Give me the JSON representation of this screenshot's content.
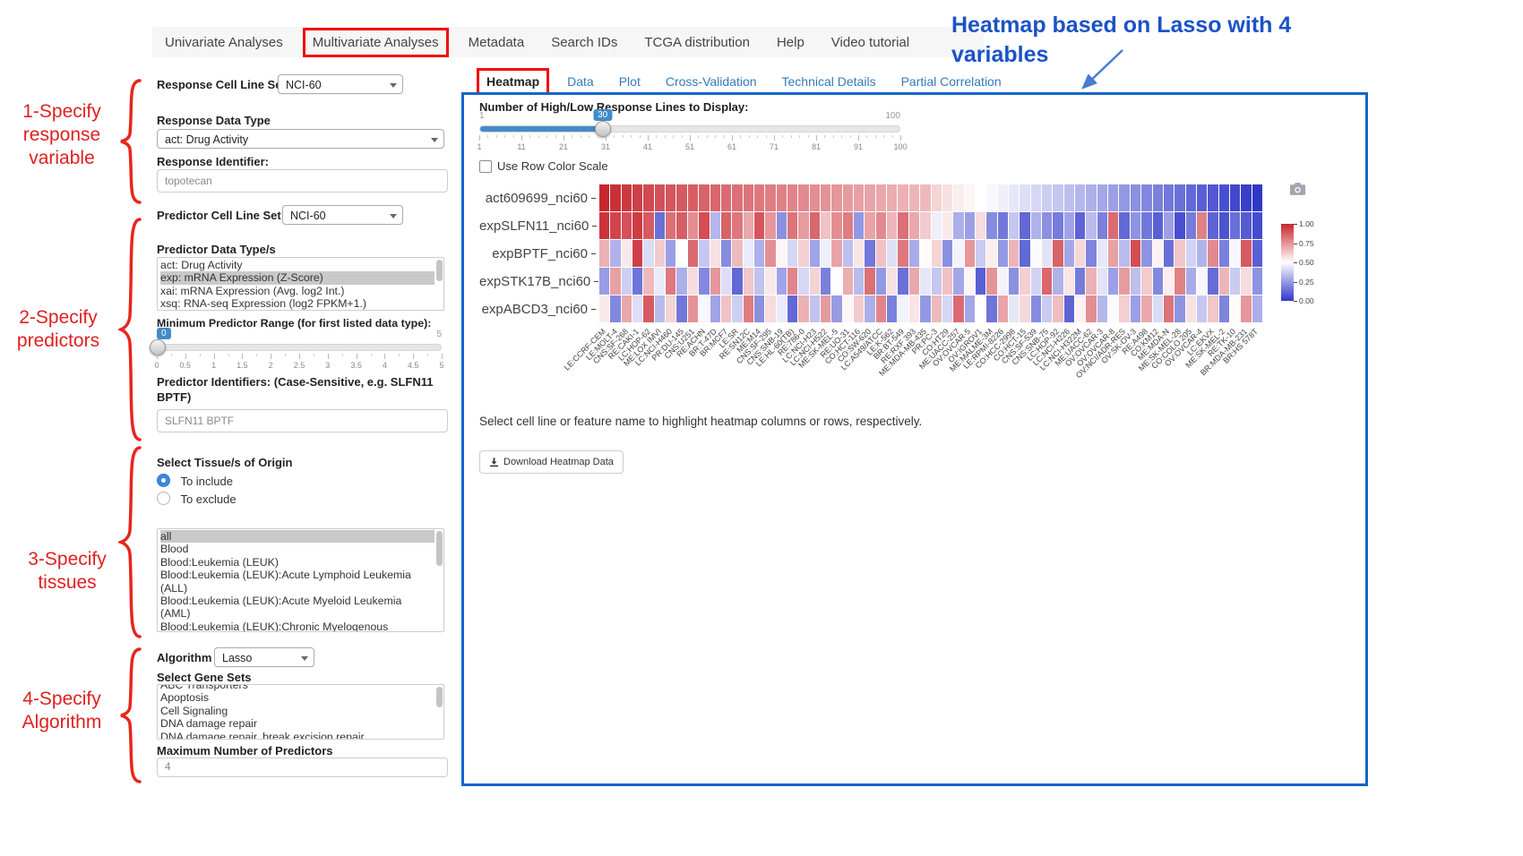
{
  "nav": {
    "tabs": [
      {
        "label": "Univariate Analyses",
        "highlighted": false
      },
      {
        "label": "Multivariate Analyses",
        "highlighted": true
      },
      {
        "label": "Metadata",
        "highlighted": false
      },
      {
        "label": "Search IDs",
        "highlighted": false
      },
      {
        "label": "TCGA distribution",
        "highlighted": false
      },
      {
        "label": "Help",
        "highlighted": false
      },
      {
        "label": "Video tutorial",
        "highlighted": false
      }
    ]
  },
  "annotations": {
    "left": [
      {
        "lines": [
          "1-Specify",
          "response",
          "variable"
        ]
      },
      {
        "lines": [
          "2-Specify",
          "predictors"
        ]
      },
      {
        "lines": [
          "3-Specify",
          "tissues"
        ]
      },
      {
        "lines": [
          "4-Specify",
          "Algorithm"
        ]
      }
    ],
    "top_right": "Heatmap based on Lasso with 4 variables"
  },
  "sidebar": {
    "response_cell_line_set": {
      "label": "Response Cell Line Set",
      "value": "NCI-60"
    },
    "response_data_type": {
      "label": "Response Data Type",
      "value": "act: Drug Activity"
    },
    "response_identifier": {
      "label": "Response Identifier:",
      "value": "topotecan"
    },
    "predictor_cell_line_set": {
      "label": "Predictor Cell Line Set",
      "value": "NCI-60"
    },
    "predictor_data_types": {
      "label": "Predictor Data Type/s",
      "options": [
        "act: Drug Activity",
        "exp: mRNA Expression (Z-Score)",
        "xai: mRNA Expression (Avg. log2 Int.)",
        "xsq: RNA-seq Expression (log2 FPKM+1.)"
      ],
      "selected": "exp: mRNA Expression (Z-Score)"
    },
    "min_predictor_range": {
      "label": "Minimum Predictor Range (for first listed data type):",
      "min": 0,
      "max": 5,
      "value": 0,
      "min_label": "",
      "max_label": "5",
      "ticks": [
        "0",
        "0.5",
        "1",
        "1.5",
        "2",
        "2.5",
        "3",
        "3.5",
        "4",
        "4.5",
        "5"
      ]
    },
    "predictor_identifiers": {
      "label": "Predictor Identifiers: (Case-Sensitive, e.g. SLFN11 BPTF)",
      "value": "SLFN11 BPTF"
    },
    "tissue_origin": {
      "label": "Select Tissue/s of Origin",
      "radios": [
        {
          "label": "To include",
          "checked": true
        },
        {
          "label": "To exclude",
          "checked": false
        }
      ],
      "options": [
        "all",
        "Blood",
        "Blood:Leukemia (LEUK)",
        "Blood:Leukemia (LEUK):Acute Lymphoid Leukemia (ALL)",
        "Blood:Leukemia (LEUK):Acute Myeloid Leukemia (AML)",
        "Blood:Leukemia (LEUK):Chronic Myelogenous Leukemia (CML)"
      ],
      "selected": "all"
    },
    "algorithm": {
      "label": "Algorithm",
      "value": "Lasso"
    },
    "gene_sets": {
      "label": "Select Gene Sets",
      "options": [
        "ABC Transporters",
        "Apoptosis",
        "Cell Signaling",
        "DNA damage repair",
        "DNA damage repair, break excision repair"
      ]
    },
    "max_predictors": {
      "label": "Maximum Number of Predictors",
      "value": "4"
    }
  },
  "main": {
    "tabs": [
      {
        "label": "Heatmap",
        "active": true,
        "highlighted": true
      },
      {
        "label": "Data",
        "active": false,
        "highlighted": false
      },
      {
        "label": "Plot",
        "active": false,
        "highlighted": false
      },
      {
        "label": "Cross-Validation",
        "active": false,
        "highlighted": false
      },
      {
        "label": "Technical Details",
        "active": false,
        "highlighted": false
      },
      {
        "label": "Partial Correlation",
        "active": false,
        "highlighted": false
      }
    ],
    "slider": {
      "label": "Number of High/Low Response Lines to Display:",
      "min": 1,
      "max": 100,
      "value": 30,
      "min_label": "1",
      "max_label": "100",
      "ticks": [
        "1",
        "11",
        "21",
        "31",
        "41",
        "51",
        "61",
        "71",
        "81",
        "91",
        "100"
      ]
    },
    "row_color_scale_label": "Use Row Color Scale",
    "row_color_scale_checked": false,
    "hint": "Select cell line or feature name to highlight heatmap columns or rows, respectively.",
    "download_button": "Download Heatmap Data"
  },
  "chart_data": {
    "type": "heatmap",
    "rows": [
      "act609699_nci60",
      "expSLFN11_nci60",
      "expBPTF_nci60",
      "expSTK17B_nci60",
      "expABCD3_nci60"
    ],
    "columns": [
      "LE:CCRF-CEM",
      "LE:MOLT-4",
      "CNS:SF-268",
      "RE:CAKI-1",
      "LC:HOP-62",
      "ME:LOX IMVI",
      "LC:NCI-H460",
      "PR:DU-145",
      "CNS:U251",
      "RE:ACHN",
      "BR:T-47D",
      "BR:MCF7",
      "LE:SR",
      "RE:SN12C",
      "ME:M14",
      "CNS:SF-295",
      "CNS:SNB-19",
      "LE:HL-60(TB)",
      "RE:786-0",
      "LC:NCI-H23",
      "LC:NCI-H522",
      "ME:SK-MEL-5",
      "RE:UO-31",
      "CO:HCT-116",
      "CO:SW-620",
      "LC:A549/ATCC",
      "LE:K-562",
      "BR:BT-549",
      "RE:RXF 393",
      "ME:MDA-MB-435",
      "PR:PC-3",
      "CO:HT29",
      "ME:UACC-257",
      "OV:OVCAR-5",
      "OV:IGROV1",
      "ME:MALME-3M",
      "LE:RPMI-8226",
      "CO:HCC-2998",
      "CO:HCT-15",
      "CNS:SF-539",
      "CNS:SNB-75",
      "LC:HOP-92",
      "LC:NCI-H226",
      "LC:NCI-H322M",
      "ME:UACC-62",
      "OV:OVCAR-3",
      "OV:OVCAR-8",
      "OV:NCI/ADR-RES",
      "OV:SK-OV-3",
      "RE:A498",
      "CO:KM12",
      "ME:MDA-N",
      "ME:SK-MEL-28",
      "CO:COLO 205",
      "OV:OVCAR-4",
      "LC:EKVX",
      "ME:SK-MEL-2",
      "RE:TK-10",
      "BR:MDA-MB-231",
      "BR:HS 578T"
    ],
    "values": [
      [
        1.0,
        0.98,
        0.96,
        0.94,
        0.92,
        0.9,
        0.89,
        0.88,
        0.87,
        0.86,
        0.85,
        0.84,
        0.83,
        0.82,
        0.81,
        0.8,
        0.79,
        0.78,
        0.77,
        0.76,
        0.75,
        0.74,
        0.73,
        0.72,
        0.71,
        0.7,
        0.69,
        0.68,
        0.67,
        0.66,
        0.6,
        0.57,
        0.54,
        0.52,
        0.5,
        0.48,
        0.46,
        0.44,
        0.42,
        0.4,
        0.38,
        0.36,
        0.34,
        0.32,
        0.3,
        0.28,
        0.26,
        0.24,
        0.22,
        0.2,
        0.18,
        0.16,
        0.14,
        0.12,
        0.1,
        0.08,
        0.06,
        0.04,
        0.02,
        0.0
      ],
      [
        0.97,
        0.93,
        0.9,
        0.95,
        0.88,
        0.14,
        0.83,
        0.87,
        0.76,
        0.91,
        0.32,
        0.86,
        0.81,
        0.7,
        0.89,
        0.74,
        0.22,
        0.82,
        0.73,
        0.85,
        0.64,
        0.76,
        0.8,
        0.24,
        0.71,
        0.77,
        0.67,
        0.83,
        0.7,
        0.62,
        0.46,
        0.55,
        0.3,
        0.26,
        0.58,
        0.21,
        0.16,
        0.36,
        0.12,
        0.31,
        0.22,
        0.17,
        0.27,
        0.11,
        0.33,
        0.18,
        0.84,
        0.12,
        0.23,
        0.16,
        0.1,
        0.26,
        0.06,
        0.17,
        0.79,
        0.11,
        0.07,
        0.14,
        0.09,
        0.05
      ],
      [
        0.68,
        0.31,
        0.55,
        0.94,
        0.41,
        0.62,
        0.26,
        0.5,
        0.84,
        0.36,
        0.57,
        0.21,
        0.66,
        0.45,
        0.3,
        0.76,
        0.52,
        0.4,
        0.61,
        0.27,
        0.46,
        0.71,
        0.34,
        0.56,
        0.16,
        0.64,
        0.42,
        0.81,
        0.29,
        0.51,
        0.6,
        0.22,
        0.47,
        0.74,
        0.37,
        0.54,
        0.24,
        0.67,
        0.12,
        0.49,
        0.43,
        0.86,
        0.28,
        0.59,
        0.19,
        0.44,
        0.72,
        0.33,
        0.91,
        0.23,
        0.53,
        0.14,
        0.63,
        0.39,
        0.31,
        0.77,
        0.18,
        0.48,
        0.88,
        0.1
      ],
      [
        0.25,
        0.72,
        0.38,
        0.15,
        0.66,
        0.45,
        0.81,
        0.3,
        0.58,
        0.2,
        0.74,
        0.42,
        0.12,
        0.63,
        0.35,
        0.55,
        0.27,
        0.78,
        0.4,
        0.6,
        0.18,
        0.5,
        0.69,
        0.33,
        0.83,
        0.24,
        0.57,
        0.14,
        0.7,
        0.44,
        0.36,
        0.64,
        0.28,
        0.52,
        0.1,
        0.75,
        0.47,
        0.22,
        0.61,
        0.39,
        0.85,
        0.31,
        0.56,
        0.17,
        0.68,
        0.43,
        0.26,
        0.73,
        0.34,
        0.62,
        0.2,
        0.54,
        0.79,
        0.29,
        0.48,
        0.13,
        0.67,
        0.37,
        0.58,
        0.23
      ],
      [
        0.55,
        0.2,
        0.7,
        0.42,
        0.88,
        0.33,
        0.6,
        0.16,
        0.75,
        0.48,
        0.27,
        0.64,
        0.38,
        0.8,
        0.22,
        0.58,
        0.45,
        0.12,
        0.68,
        0.35,
        0.73,
        0.25,
        0.52,
        0.62,
        0.3,
        0.78,
        0.18,
        0.47,
        0.56,
        0.24,
        0.66,
        0.4,
        0.84,
        0.28,
        0.5,
        0.15,
        0.71,
        0.44,
        0.59,
        0.21,
        0.37,
        0.65,
        0.11,
        0.53,
        0.76,
        0.32,
        0.49,
        0.61,
        0.26,
        0.7,
        0.41,
        0.82,
        0.23,
        0.57,
        0.36,
        0.63,
        0.19,
        0.51,
        0.74,
        0.3
      ]
    ],
    "colorscale": {
      "high": "#c9262f",
      "mid": "#ffffff",
      "low": "#3038c8",
      "legend_ticks": [
        "1.00",
        "0.75",
        "0.50",
        "0.25",
        "0.00"
      ]
    }
  }
}
